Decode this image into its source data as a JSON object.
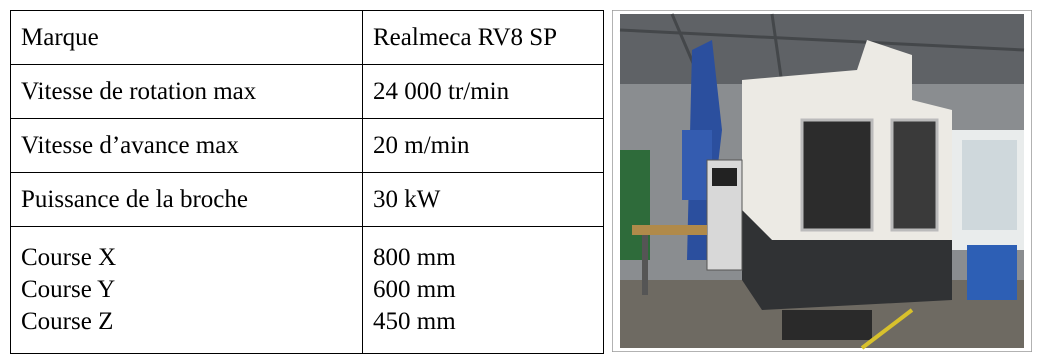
{
  "table": {
    "rows": [
      [
        "Marque",
        "Realmeca RV8 SP"
      ],
      [
        "Vitesse de rotation max",
        "24 000 tr/min"
      ],
      [
        "Vitesse d’avance max",
        "20 m/min"
      ],
      [
        "Puissance de la broche",
        "30 kW"
      ],
      [
        "Course X",
        "800 mm"
      ],
      [
        "Course Y",
        "600 mm"
      ],
      [
        "Course Z",
        "450 mm"
      ]
    ]
  }
}
